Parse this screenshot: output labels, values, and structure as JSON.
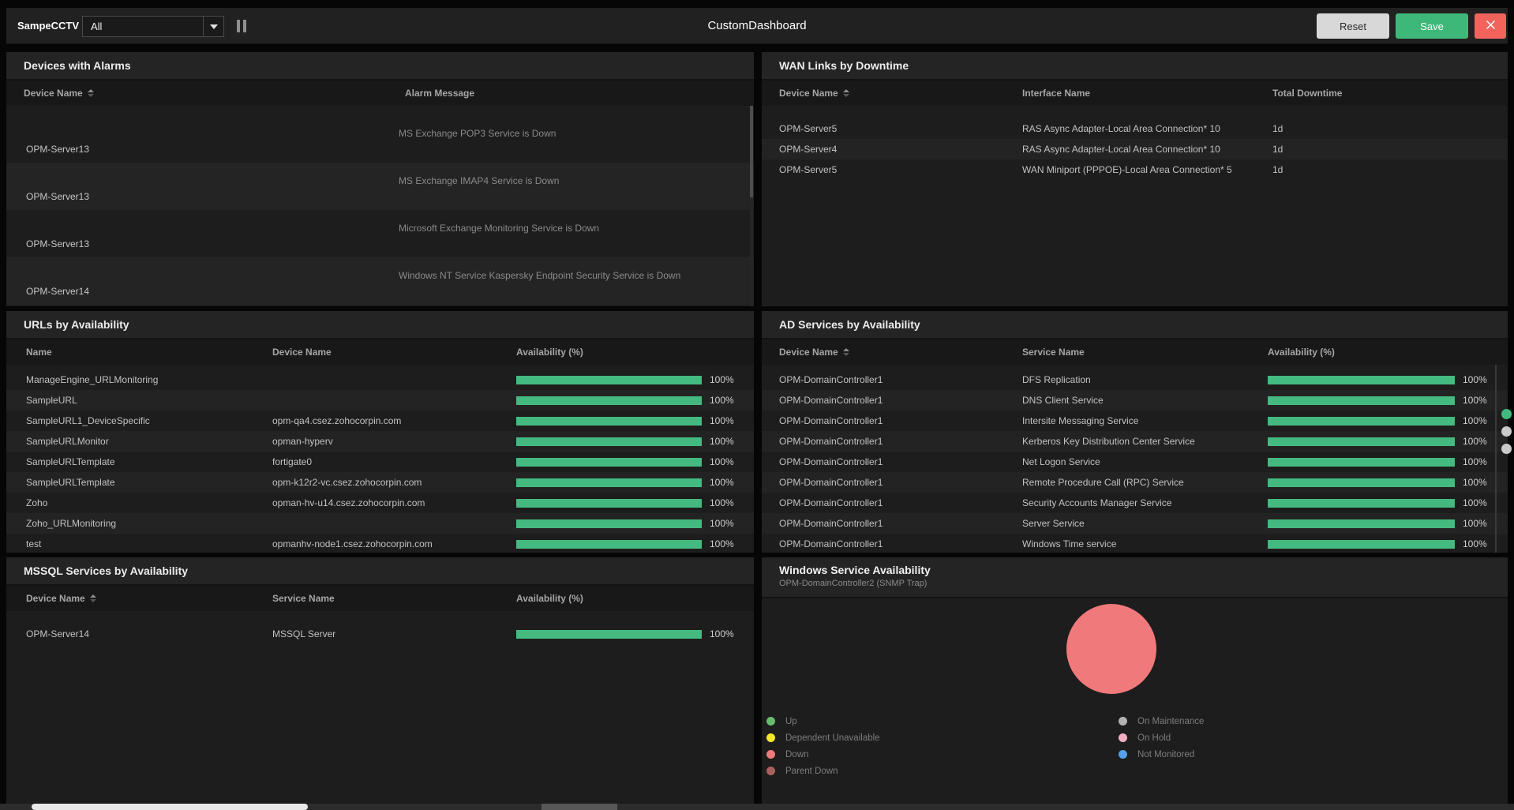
{
  "colors": {
    "availability_bar": "#45ba80",
    "save_button": "#3eb878",
    "close_button": "#f2635c",
    "indicator_active": "#3eba7c",
    "indicator_inactive": "#c9c9c9"
  },
  "topbar": {
    "dashboard_label": "SampeCCTV",
    "filter_selected": "All",
    "title": "CustomDashboard",
    "reset_label": "Reset",
    "save_label": "Save"
  },
  "devices_with_alarms": {
    "title": "Devices with Alarms",
    "columns": [
      "Device Name",
      "Alarm Message"
    ],
    "rows": [
      {
        "device": "OPM-Server13",
        "message": "MS Exchange POP3 Service is Down"
      },
      {
        "device": "OPM-Server13",
        "message": "MS Exchange IMAP4 Service is Down"
      },
      {
        "device": "OPM-Server13",
        "message": "Microsoft Exchange Monitoring Service is Down"
      },
      {
        "device": "OPM-Server14",
        "message": "Windows NT Service Kaspersky Endpoint Security Service is Down"
      }
    ]
  },
  "wan_links": {
    "title": "WAN Links by Downtime",
    "columns": [
      "Device Name",
      "Interface Name",
      "Total Downtime"
    ],
    "rows": [
      {
        "device": "OPM-Server5",
        "interface": "RAS Async Adapter-Local Area Connection* 10",
        "downtime": "1d"
      },
      {
        "device": "OPM-Server4",
        "interface": "RAS Async Adapter-Local Area Connection* 10",
        "downtime": "1d"
      },
      {
        "device": "OPM-Server5",
        "interface": "WAN Miniport (PPPOE)-Local Area Connection* 5",
        "downtime": "1d"
      }
    ]
  },
  "urls": {
    "title": "URLs by Availability",
    "columns": [
      "Name",
      "Device Name",
      "Availability (%)"
    ],
    "rows": [
      {
        "name": "ManageEngine_URLMonitoring",
        "device": "",
        "availability_pct": 100,
        "availability_label": "100%"
      },
      {
        "name": "SampleURL",
        "device": "",
        "availability_pct": 100,
        "availability_label": "100%"
      },
      {
        "name": "SampleURL1_DeviceSpecific",
        "device": "opm-qa4.csez.zohocorpin.com",
        "availability_pct": 100,
        "availability_label": "100%"
      },
      {
        "name": "SampleURLMonitor",
        "device": "opman-hyperv",
        "availability_pct": 100,
        "availability_label": "100%"
      },
      {
        "name": "SampleURLTemplate",
        "device": "fortigate0",
        "availability_pct": 100,
        "availability_label": "100%"
      },
      {
        "name": "SampleURLTemplate",
        "device": "opm-k12r2-vc.csez.zohocorpin.com",
        "availability_pct": 100,
        "availability_label": "100%"
      },
      {
        "name": "Zoho",
        "device": "opman-hv-u14.csez.zohocorpin.com",
        "availability_pct": 100,
        "availability_label": "100%"
      },
      {
        "name": "Zoho_URLMonitoring",
        "device": "",
        "availability_pct": 100,
        "availability_label": "100%"
      },
      {
        "name": "test",
        "device": "opmanhv-node1.csez.zohocorpin.com",
        "availability_pct": 100,
        "availability_label": "100%"
      }
    ]
  },
  "ad_services": {
    "title": "AD Services by Availability",
    "columns": [
      "Device Name",
      "Service Name",
      "Availability (%)"
    ],
    "rows": [
      {
        "device": "OPM-DomainController1",
        "service": "DFS Replication",
        "availability_pct": 100,
        "availability_label": "100%"
      },
      {
        "device": "OPM-DomainController1",
        "service": "DNS Client Service",
        "availability_pct": 100,
        "availability_label": "100%"
      },
      {
        "device": "OPM-DomainController1",
        "service": "Intersite Messaging Service",
        "availability_pct": 100,
        "availability_label": "100%"
      },
      {
        "device": "OPM-DomainController1",
        "service": "Kerberos Key Distribution Center Service",
        "availability_pct": 100,
        "availability_label": "100%"
      },
      {
        "device": "OPM-DomainController1",
        "service": "Net Logon Service",
        "availability_pct": 100,
        "availability_label": "100%"
      },
      {
        "device": "OPM-DomainController1",
        "service": "Remote Procedure Call (RPC) Service",
        "availability_pct": 100,
        "availability_label": "100%"
      },
      {
        "device": "OPM-DomainController1",
        "service": "Security Accounts Manager Service",
        "availability_pct": 100,
        "availability_label": "100%"
      },
      {
        "device": "OPM-DomainController1",
        "service": "Server Service",
        "availability_pct": 100,
        "availability_label": "100%"
      },
      {
        "device": "OPM-DomainController1",
        "service": "Windows Time service",
        "availability_pct": 100,
        "availability_label": "100%"
      }
    ]
  },
  "mssql_services": {
    "title": "MSSQL Services by Availability",
    "columns": [
      "Device Name",
      "Service Name",
      "Availability (%)"
    ],
    "rows": [
      {
        "device": "OPM-Server14",
        "service": "MSSQL Server",
        "availability_pct": 100,
        "availability_label": "100%"
      }
    ]
  },
  "windows_service": {
    "title": "Windows Service Availability",
    "subtitle": "OPM-DomainController2 (SNMP Trap)",
    "chart_data": {
      "type": "pie",
      "title": "Windows Service Availability",
      "slices": [
        {
          "label": "Down",
          "value": 100,
          "color": "#f0797b"
        }
      ],
      "legend_position": "bottom",
      "legend": [
        {
          "label": "Up",
          "color": "#67bb6d"
        },
        {
          "label": "Dependent Unavailable",
          "color": "#f3e72b"
        },
        {
          "label": "Down",
          "color": "#f0797b"
        },
        {
          "label": "Parent Down",
          "color": "#a9605c"
        },
        {
          "label": "On Maintenance",
          "color": "#b3b3b3"
        },
        {
          "label": "On Hold",
          "color": "#f3afc2"
        },
        {
          "label": "Not Monitored",
          "color": "#55a1e8"
        }
      ]
    }
  }
}
